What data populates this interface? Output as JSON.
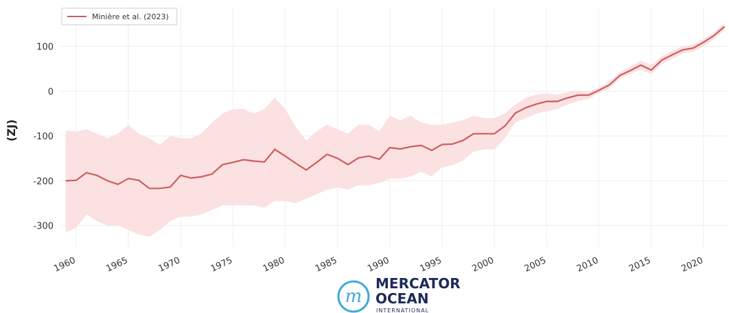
{
  "chart_data": {
    "type": "line",
    "ylabel": "(ZJ)",
    "x": [
      1959,
      1960,
      1961,
      1962,
      1963,
      1964,
      1965,
      1966,
      1967,
      1968,
      1969,
      1970,
      1971,
      1972,
      1973,
      1974,
      1975,
      1976,
      1977,
      1978,
      1979,
      1980,
      1981,
      1982,
      1983,
      1984,
      1985,
      1986,
      1987,
      1988,
      1989,
      1990,
      1991,
      1992,
      1993,
      1994,
      1995,
      1996,
      1997,
      1998,
      1999,
      2000,
      2001,
      2002,
      2003,
      2004,
      2005,
      2006,
      2007,
      2008,
      2009,
      2010,
      2011,
      2012,
      2013,
      2014,
      2015,
      2016,
      2017,
      2018,
      2019,
      2020,
      2021,
      2022
    ],
    "series": [
      {
        "name": "Minière et al. (2023)",
        "color": "#cd5c5c",
        "band_color": "#fbe1e1",
        "values": [
          -200,
          -199,
          -182,
          -188,
          -200,
          -208,
          -195,
          -199,
          -217,
          -217,
          -214,
          -188,
          -194,
          -191,
          -185,
          -164,
          -159,
          -153,
          -156,
          -158,
          -130,
          -145,
          -161,
          -176,
          -159,
          -141,
          -150,
          -164,
          -149,
          -145,
          -152,
          -126,
          -129,
          -124,
          -121,
          -132,
          -119,
          -118,
          -110,
          -95,
          -95,
          -95,
          -78,
          -49,
          -37,
          -29,
          -23,
          -23,
          -15,
          -9,
          -9,
          2,
          14,
          35,
          46,
          58,
          47,
          69,
          81,
          92,
          96,
          109,
          124,
          144
        ],
        "lower": [
          -315,
          -305,
          -275,
          -290,
          -300,
          -300,
          -310,
          -320,
          -325,
          -310,
          -290,
          -280,
          -280,
          -275,
          -265,
          -255,
          -255,
          -255,
          -255,
          -260,
          -245,
          -245,
          -250,
          -240,
          -230,
          -220,
          -215,
          -220,
          -210,
          -210,
          -205,
          -195,
          -195,
          -190,
          -180,
          -190,
          -170,
          -165,
          -155,
          -135,
          -130,
          -130,
          -105,
          -70,
          -60,
          -50,
          -45,
          -40,
          -30,
          -22,
          -18,
          -5,
          6,
          28,
          38,
          48,
          38,
          60,
          72,
          84,
          88,
          100,
          116,
          136
        ],
        "upper": [
          -88,
          -90,
          -85,
          -95,
          -105,
          -95,
          -75,
          -95,
          -105,
          -120,
          -100,
          -105,
          -105,
          -95,
          -70,
          -50,
          -40,
          -40,
          -50,
          -40,
          -15,
          -40,
          -80,
          -110,
          -90,
          -75,
          -85,
          -95,
          -75,
          -75,
          -90,
          -55,
          -65,
          -55,
          -70,
          -75,
          -75,
          -70,
          -65,
          -55,
          -60,
          -60,
          -50,
          -30,
          -15,
          -8,
          -5,
          -8,
          -2,
          2,
          -2,
          8,
          22,
          42,
          55,
          68,
          58,
          78,
          90,
          100,
          104,
          116,
          132,
          152
        ]
      }
    ],
    "xlim": [
      1958.5,
      2022.3
    ],
    "xticks": [
      1960,
      1965,
      1970,
      1975,
      1980,
      1985,
      1990,
      1995,
      2000,
      2005,
      2010,
      2015,
      2020
    ],
    "ylim": [
      -348,
      188
    ],
    "yticks": [
      -300,
      -200,
      -100,
      0,
      100
    ],
    "grid": true,
    "legend": "upper left",
    "logo": {
      "line1": "MERCATOR",
      "line2": "OCEAN",
      "line3": "INTERNATIONAL"
    }
  }
}
